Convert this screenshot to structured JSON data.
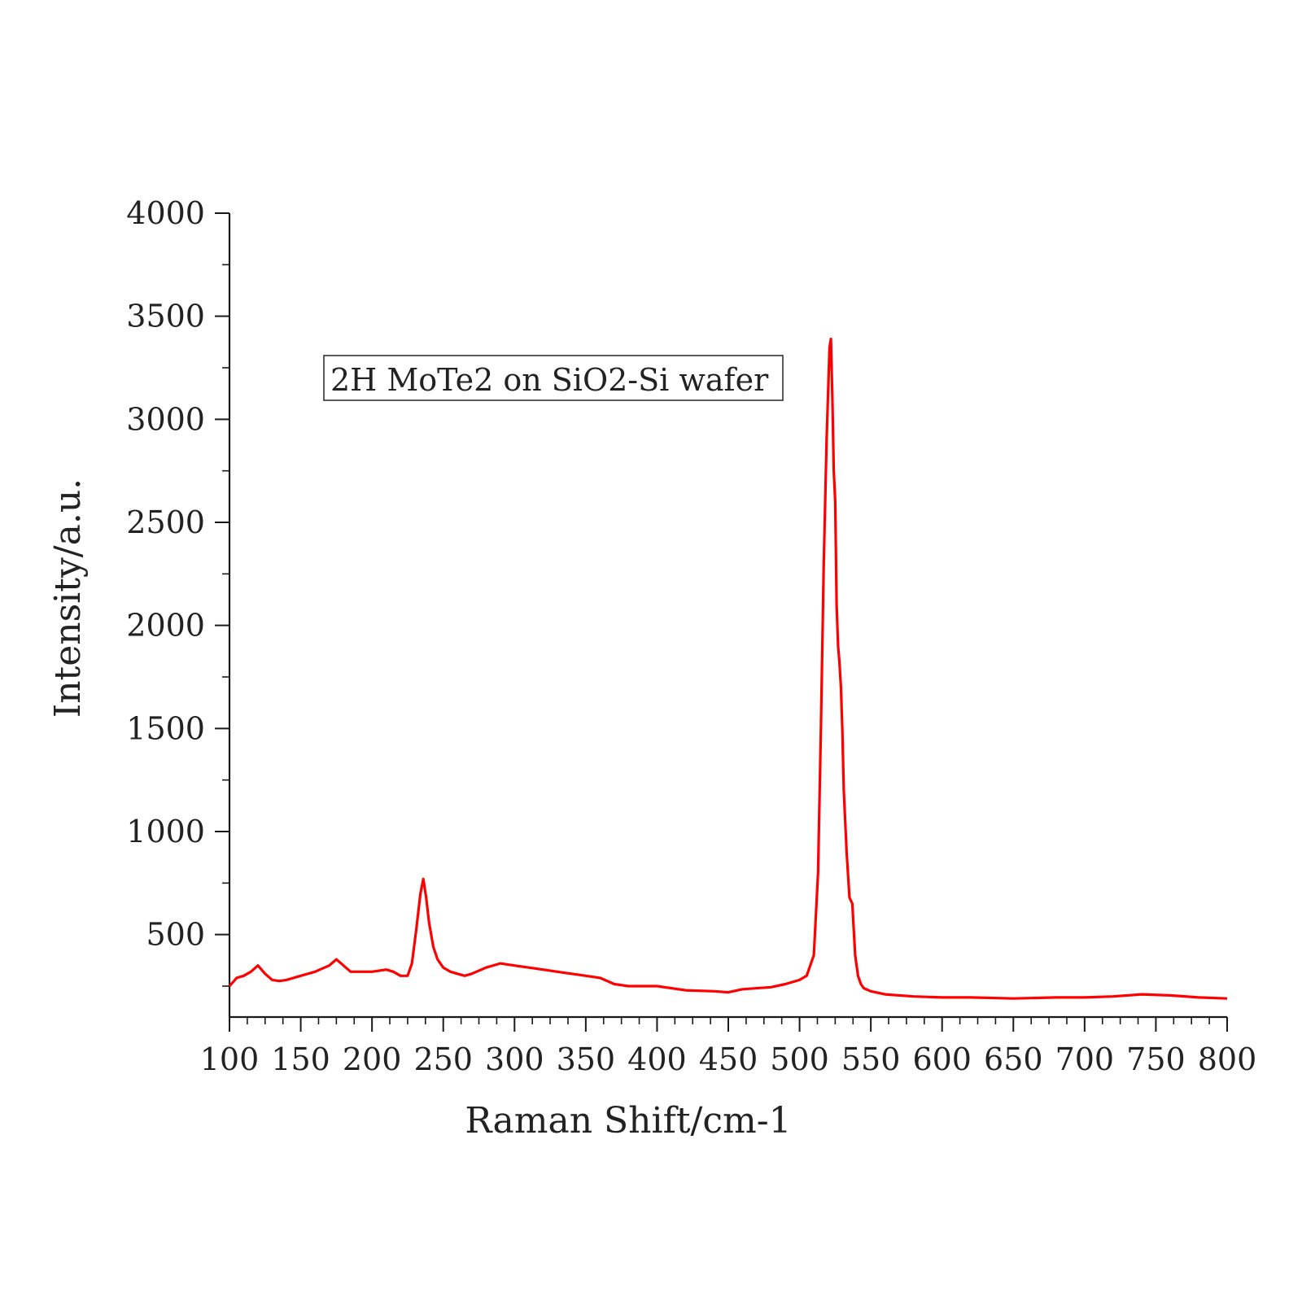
{
  "chart_data": {
    "type": "line",
    "title": "",
    "xlabel": "Raman Shift/cm-1",
    "ylabel": "Intensity/a.u.",
    "xlim": [
      100,
      800
    ],
    "ylim": [
      100,
      4000
    ],
    "x_ticks": [
      "100",
      "150",
      "200",
      "250",
      "300",
      "350",
      "400",
      "450",
      "500",
      "550",
      "600",
      "650",
      "700",
      "750",
      "800"
    ],
    "y_ticks": [
      "500",
      "1000",
      "1500",
      "2000",
      "2500",
      "3000",
      "3500",
      "4000"
    ],
    "x_tick_values": [
      100,
      150,
      200,
      250,
      300,
      350,
      400,
      450,
      500,
      550,
      600,
      650,
      700,
      750,
      800
    ],
    "y_tick_values": [
      500,
      1000,
      1500,
      2000,
      2500,
      3000,
      3500,
      4000
    ],
    "annotation": "2H MoTe2 on SiO2-Si wafer",
    "grid": false,
    "legend": "none",
    "line_color": "#ff0000",
    "series": [
      {
        "x": [
          100,
          105,
          110,
          115,
          120,
          125,
          130,
          135,
          140,
          150,
          160,
          170,
          175,
          180,
          185,
          190,
          200,
          210,
          215,
          220,
          225,
          228,
          231,
          234,
          236,
          238,
          240,
          243,
          246,
          250,
          255,
          260,
          265,
          270,
          280,
          290,
          300,
          310,
          320,
          330,
          340,
          350,
          360,
          370,
          380,
          400,
          420,
          440,
          450,
          460,
          480,
          490,
          500,
          505,
          510,
          513,
          515,
          517,
          519,
          521,
          522,
          523,
          524,
          525,
          526,
          527,
          528,
          529,
          530,
          531,
          533,
          535,
          537,
          539,
          541,
          543,
          545,
          550,
          560,
          580,
          600,
          620,
          650,
          680,
          700,
          720,
          740,
          760,
          780,
          800
        ],
        "y": [
          250,
          290,
          300,
          320,
          350,
          310,
          280,
          275,
          280,
          300,
          320,
          350,
          380,
          350,
          320,
          320,
          320,
          330,
          320,
          300,
          300,
          360,
          520,
          700,
          770,
          680,
          560,
          440,
          380,
          340,
          320,
          310,
          300,
          310,
          340,
          360,
          350,
          340,
          330,
          320,
          310,
          300,
          290,
          260,
          250,
          250,
          230,
          225,
          220,
          235,
          245,
          260,
          280,
          300,
          400,
          800,
          1500,
          2300,
          2900,
          3350,
          3390,
          3100,
          2750,
          2600,
          2100,
          1900,
          1820,
          1700,
          1500,
          1200,
          900,
          680,
          650,
          400,
          300,
          260,
          240,
          225,
          210,
          200,
          195,
          195,
          190,
          195,
          195,
          200,
          210,
          205,
          195,
          190
        ]
      }
    ]
  }
}
